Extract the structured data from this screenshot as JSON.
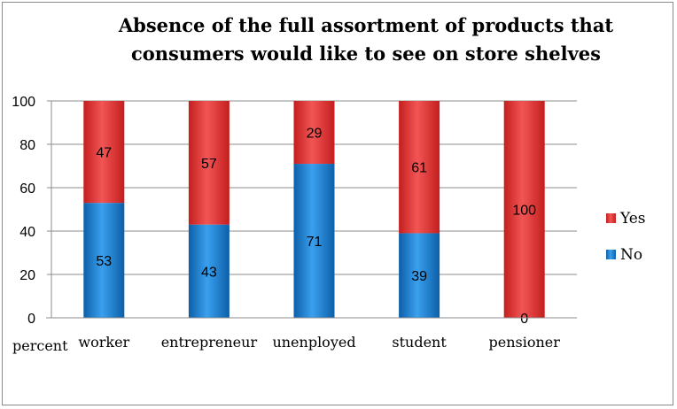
{
  "chart_data": {
    "type": "bar",
    "stacked": true,
    "title": "Absence of the full assortment of products that consumers would like to see on store shelves",
    "ylabel": "percent",
    "ylim": [
      0,
      100
    ],
    "yticks": [
      0,
      20,
      40,
      60,
      80,
      100
    ],
    "grid": true,
    "legend": "right",
    "categories": [
      "worker",
      "entrepreneur",
      "unenployed",
      "student",
      "pensioner"
    ],
    "series": [
      {
        "name": "No",
        "values": [
          53,
          43,
          71,
          39,
          0
        ],
        "color": "#1f7fd0"
      },
      {
        "name": "Yes",
        "values": [
          47,
          57,
          29,
          61,
          100
        ],
        "color": "#e03030"
      }
    ]
  }
}
